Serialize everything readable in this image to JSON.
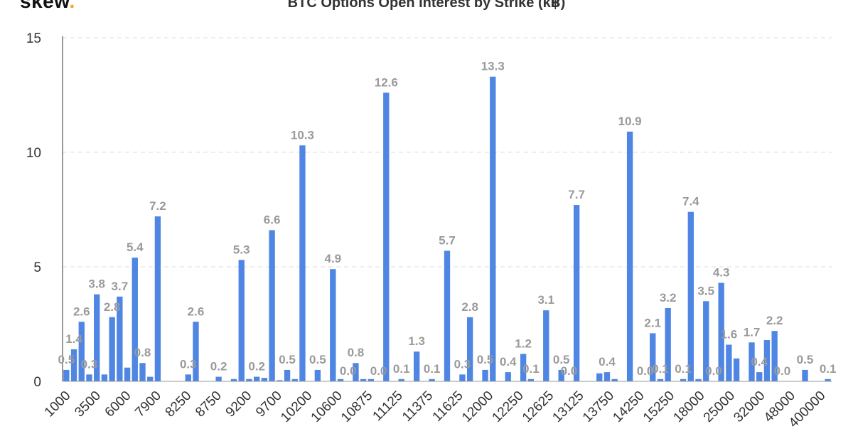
{
  "logo": {
    "text": "skew",
    "dot": "."
  },
  "chart_data": {
    "type": "bar",
    "title": "BTC Options Open Interest by Strike (k฿)",
    "ylim": [
      0,
      15
    ],
    "yticks": [
      0,
      5,
      10,
      15
    ],
    "grid": true,
    "color": "#4f86e3",
    "x_tick_labels": [
      "1000",
      "3500",
      "6000",
      "7900",
      "8250",
      "8750",
      "9200",
      "9700",
      "10200",
      "10600",
      "10875",
      "11125",
      "11375",
      "11625",
      "12000",
      "12250",
      "12625",
      "13125",
      "13750",
      "14250",
      "15250",
      "18000",
      "25000",
      "32000",
      "48000",
      "400000"
    ],
    "values": [
      0.5,
      1.4,
      2.6,
      0.3,
      3.8,
      0.3,
      2.8,
      3.7,
      0.6,
      5.4,
      0.8,
      0.2,
      7.2,
      0.0,
      0.0,
      0.0,
      0.3,
      2.6,
      0.0,
      0.0,
      0.2,
      0.0,
      0.1,
      5.3,
      0.1,
      0.2,
      0.15,
      6.6,
      0.05,
      0.5,
      0.1,
      10.3,
      0.0,
      0.5,
      0.0,
      4.9,
      0.1,
      0.0,
      0.8,
      0.1,
      0.1,
      0.0,
      12.6,
      0.0,
      0.1,
      0.0,
      1.3,
      0.0,
      0.1,
      0.0,
      5.7,
      0.0,
      0.3,
      2.8,
      0.0,
      0.5,
      13.3,
      0.0,
      0.4,
      0.0,
      1.2,
      0.1,
      0.0,
      3.1,
      0.0,
      0.5,
      0.0,
      7.7,
      0.0,
      0.0,
      0.35,
      0.4,
      0.1,
      0.0,
      10.9,
      0.0,
      0.0,
      2.1,
      0.1,
      3.2,
      0.0,
      0.1,
      7.4,
      0.1,
      3.5,
      0.0,
      4.3,
      1.6,
      1.0,
      0.0,
      1.7,
      0.4,
      1.8,
      2.2,
      0.0,
      0.0,
      0.0,
      0.5,
      0.0,
      0.0,
      0.1
    ],
    "data_labels": [
      {
        "i": 0,
        "text": "0.5"
      },
      {
        "i": 1,
        "text": "1.4"
      },
      {
        "i": 2,
        "text": "2.6"
      },
      {
        "i": 3,
        "text": "0.3"
      },
      {
        "i": 4,
        "text": "3.8"
      },
      {
        "i": 6,
        "text": "2.8"
      },
      {
        "i": 7,
        "text": "3.7"
      },
      {
        "i": 9,
        "text": "5.4"
      },
      {
        "i": 10,
        "text": "0.8"
      },
      {
        "i": 12,
        "text": "7.2"
      },
      {
        "i": 16,
        "text": "0.3"
      },
      {
        "i": 17,
        "text": "2.6"
      },
      {
        "i": 20,
        "text": "0.2"
      },
      {
        "i": 23,
        "text": "5.3"
      },
      {
        "i": 25,
        "text": "0.2"
      },
      {
        "i": 27,
        "text": "6.6"
      },
      {
        "i": 29,
        "text": "0.5"
      },
      {
        "i": 31,
        "text": "10.3"
      },
      {
        "i": 33,
        "text": "0.5"
      },
      {
        "i": 35,
        "text": "4.9"
      },
      {
        "i": 37,
        "text": "0.0"
      },
      {
        "i": 38,
        "text": "0.8"
      },
      {
        "i": 41,
        "text": "0.0"
      },
      {
        "i": 42,
        "text": "12.6"
      },
      {
        "i": 44,
        "text": "0.1"
      },
      {
        "i": 46,
        "text": "1.3"
      },
      {
        "i": 48,
        "text": "0.1"
      },
      {
        "i": 50,
        "text": "5.7"
      },
      {
        "i": 52,
        "text": "0.3"
      },
      {
        "i": 53,
        "text": "2.8"
      },
      {
        "i": 55,
        "text": "0.5"
      },
      {
        "i": 56,
        "text": "13.3"
      },
      {
        "i": 58,
        "text": "0.4"
      },
      {
        "i": 60,
        "text": "1.2"
      },
      {
        "i": 61,
        "text": "0.1"
      },
      {
        "i": 63,
        "text": "3.1"
      },
      {
        "i": 65,
        "text": "0.5"
      },
      {
        "i": 66,
        "text": "0.0"
      },
      {
        "i": 67,
        "text": "7.7"
      },
      {
        "i": 71,
        "text": "0.4"
      },
      {
        "i": 74,
        "text": "10.9"
      },
      {
        "i": 76,
        "text": "0.0"
      },
      {
        "i": 77,
        "text": "2.1"
      },
      {
        "i": 78,
        "text": "0.1"
      },
      {
        "i": 79,
        "text": "3.2"
      },
      {
        "i": 81,
        "text": "0.1"
      },
      {
        "i": 82,
        "text": "7.4"
      },
      {
        "i": 84,
        "text": "3.5"
      },
      {
        "i": 85,
        "text": "0.0"
      },
      {
        "i": 86,
        "text": "4.3"
      },
      {
        "i": 87,
        "text": "1.6"
      },
      {
        "i": 90,
        "text": "1.7"
      },
      {
        "i": 91,
        "text": "0.4"
      },
      {
        "i": 93,
        "text": "2.2"
      },
      {
        "i": 94,
        "text": "0.0"
      },
      {
        "i": 97,
        "text": "0.5"
      },
      {
        "i": 100,
        "text": "0.1"
      }
    ]
  }
}
